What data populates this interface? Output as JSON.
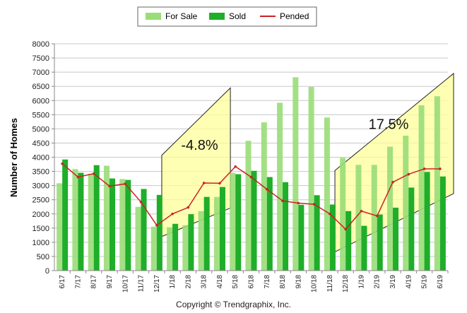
{
  "chart_data": {
    "type": "bar",
    "title": "",
    "ylabel": "Number of Homes",
    "xlabel": "",
    "ylim": [
      0,
      8000
    ],
    "yticks": [
      0,
      500,
      1000,
      1500,
      2000,
      2500,
      3000,
      3500,
      4000,
      4500,
      5000,
      5500,
      6000,
      6500,
      7000,
      7500,
      8000
    ],
    "grid": true,
    "legend_position": "top",
    "categories": [
      "6/17",
      "7/17",
      "8/17",
      "9/17",
      "10/17",
      "11/17",
      "12/17",
      "1/18",
      "2/18",
      "3/18",
      "4/18",
      "5/18",
      "6/18",
      "7/18",
      "8/18",
      "9/18",
      "10/18",
      "11/18",
      "12/18",
      "1/19",
      "2/19",
      "3/19",
      "4/19",
      "5/19",
      "6/19"
    ],
    "series": [
      {
        "name": "For Sale",
        "type": "bar",
        "color": "#99dd77",
        "values": [
          3080,
          3580,
          3420,
          3700,
          3230,
          2250,
          1550,
          1530,
          1600,
          2100,
          2600,
          3450,
          4580,
          5230,
          5920,
          6820,
          6480,
          5400,
          3980,
          3730,
          3730,
          4370,
          4760,
          5830,
          6150
        ]
      },
      {
        "name": "Sold",
        "type": "bar",
        "color": "#1fae2a",
        "values": [
          3920,
          3450,
          3720,
          3250,
          3200,
          2880,
          2670,
          1650,
          1990,
          2600,
          2950,
          3400,
          3520,
          3300,
          3120,
          2320,
          2660,
          2330,
          2100,
          1580,
          1980,
          2220,
          2930,
          3480,
          3320
        ]
      },
      {
        "name": "Pended",
        "type": "line",
        "color": "#cc2222",
        "values": [
          3770,
          3300,
          3420,
          2980,
          3060,
          2420,
          1600,
          2000,
          2230,
          3090,
          3080,
          3670,
          3300,
          2870,
          2460,
          2380,
          2340,
          2000,
          1460,
          2100,
          1930,
          3120,
          3400,
          3590,
          3590
        ]
      }
    ],
    "annotations": [
      {
        "text": "-4.8%",
        "category_range": [
          "1/18",
          "4/18"
        ]
      },
      {
        "text": "17.5%",
        "category_range": [
          "12/18",
          "6/19"
        ]
      }
    ]
  },
  "footer": {
    "copyright": "Copyright © Trendgraphix, Inc."
  },
  "colors": {
    "highlight": "#ffff99",
    "grid": "#c8c8c8",
    "axis": "#888888"
  }
}
